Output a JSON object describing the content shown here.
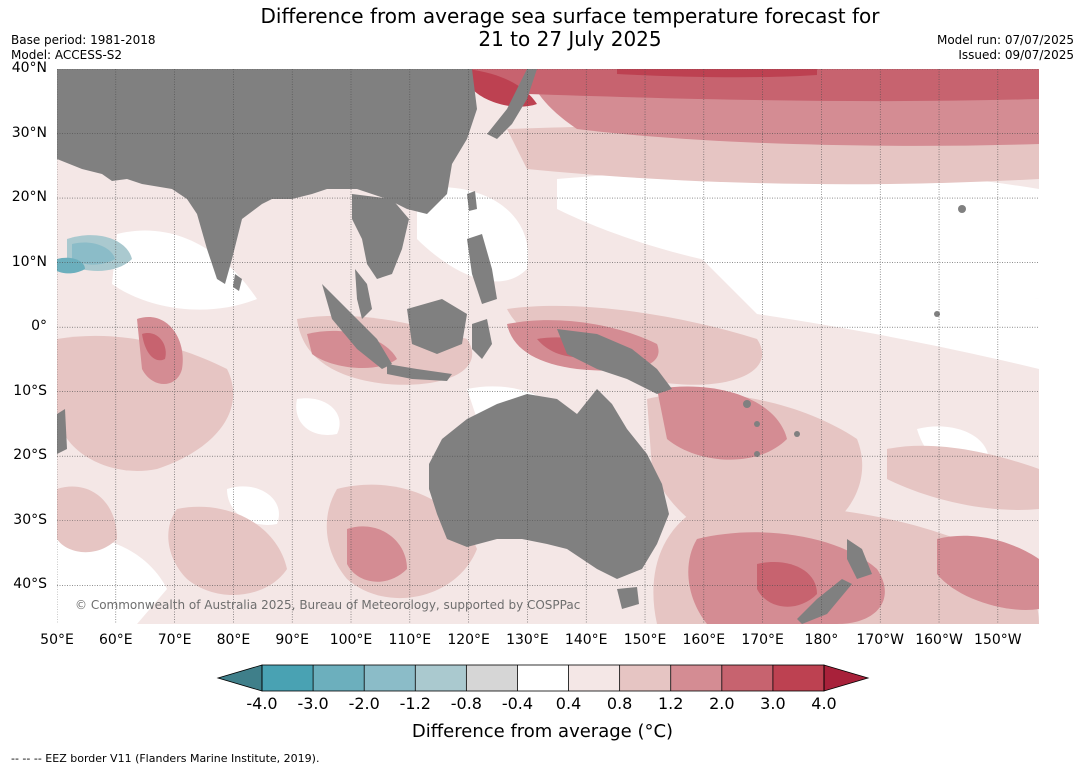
{
  "title_line1": "Difference from average sea surface temperature forecast for",
  "title_line2": "21 to 27 July 2025",
  "meta_left": [
    "Base period: 1981-2018",
    "Model: ACCESS-S2"
  ],
  "meta_right": [
    "Model run: 07/07/2025",
    "Issued: 09/07/2025"
  ],
  "copyright": "© Commonwealth of Australia 2025, Bureau of Meteorology, supported by COSPPac",
  "map": {
    "lon_range": [
      50,
      217
    ],
    "lat_range": [
      -46,
      40
    ],
    "lat_labels": [
      {
        "lat": 40,
        "label": "40°N"
      },
      {
        "lat": 30,
        "label": "30°N"
      },
      {
        "lat": 20,
        "label": "20°N"
      },
      {
        "lat": 10,
        "label": "10°N"
      },
      {
        "lat": 0,
        "label": "0°"
      },
      {
        "lat": -10,
        "label": "10°S"
      },
      {
        "lat": -20,
        "label": "20°S"
      },
      {
        "lat": -30,
        "label": "30°S"
      },
      {
        "lat": -40,
        "label": "40°S"
      }
    ],
    "lon_labels": [
      {
        "lon": 50,
        "label": "50°E"
      },
      {
        "lon": 60,
        "label": "60°E"
      },
      {
        "lon": 70,
        "label": "70°E"
      },
      {
        "lon": 80,
        "label": "80°E"
      },
      {
        "lon": 90,
        "label": "90°E"
      },
      {
        "lon": 100,
        "label": "100°E"
      },
      {
        "lon": 110,
        "label": "110°E"
      },
      {
        "lon": 120,
        "label": "120°E"
      },
      {
        "lon": 130,
        "label": "130°E"
      },
      {
        "lon": 140,
        "label": "140°E"
      },
      {
        "lon": 150,
        "label": "150°E"
      },
      {
        "lon": 160,
        "label": "160°E"
      },
      {
        "lon": 170,
        "label": "170°E"
      },
      {
        "lon": 180,
        "label": "180°"
      },
      {
        "lon": 190,
        "label": "170°W"
      },
      {
        "lon": 200,
        "label": "160°W"
      },
      {
        "lon": 210,
        "label": "150°W"
      }
    ],
    "land_color": "#808080",
    "ocean_color": "#ffffff"
  },
  "colorbar": {
    "ticks": [
      "-4.0",
      "-3.0",
      "-2.0",
      "-1.2",
      "-0.8",
      "-0.4",
      "0.4",
      "0.8",
      "1.2",
      "2.0",
      "3.0",
      "4.0"
    ],
    "colors": [
      "#49a2b3",
      "#6cafbd",
      "#8bbcc8",
      "#aac9cf",
      "#d6d6d6",
      "#ffffff",
      "#f4e7e6",
      "#e6c5c3",
      "#d48c93",
      "#c7636f",
      "#bd4151"
    ],
    "under_color": "#3f7f8a",
    "over_color": "#a8213a",
    "label": "Difference from average (°C)"
  },
  "footnote": "--  --  -- EEZ border V11 (Flanders Marine Institute, 2019)."
}
